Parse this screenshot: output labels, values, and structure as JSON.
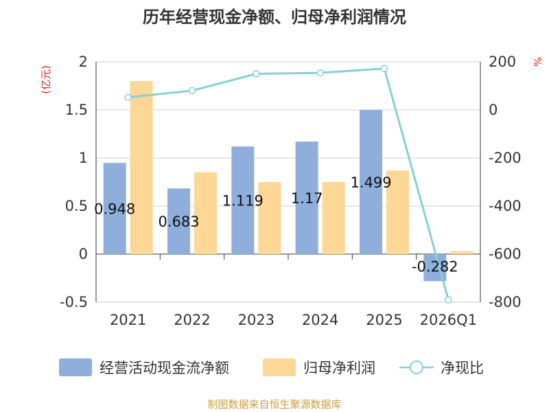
{
  "chart_data": {
    "type": "bar",
    "title": "历年经营现金净额、归母净利润情况",
    "categories": [
      "2021",
      "2022",
      "2023",
      "2024",
      "2025",
      "2026Q1"
    ],
    "y_left": {
      "unit": "(亿元)",
      "min": -0.5,
      "max": 2,
      "ticks": [
        "-0.5",
        "0",
        "0.5",
        "1",
        "1.5",
        "2"
      ]
    },
    "y_right": {
      "unit": "%",
      "min": -800,
      "max": 200,
      "ticks": [
        "-800",
        "-600",
        "-400",
        "-200",
        "0",
        "200"
      ]
    },
    "series": [
      {
        "name": "经营活动现金流净额",
        "kind": "bar",
        "axis": "left",
        "color": "#8eaedb",
        "values": [
          0.948,
          0.683,
          1.119,
          1.17,
          1.499,
          -0.282
        ],
        "labels": [
          "0.948",
          "0.683",
          "1.119",
          "1.17",
          "1.499",
          "-0.282"
        ]
      },
      {
        "name": "归母净利润",
        "kind": "bar",
        "axis": "left",
        "color": "#fdd796",
        "values": [
          1.8,
          0.85,
          0.75,
          0.75,
          0.87,
          0.03
        ]
      },
      {
        "name": "净现比",
        "kind": "line",
        "axis": "right",
        "color": "#86d0d3",
        "values": [
          52,
          80,
          150,
          154,
          172,
          -790
        ]
      }
    ]
  },
  "legend": [
    "经营活动现金流净额",
    "归母净利润",
    "净现比"
  ],
  "source": "制图数据来自恒生聚源数据库"
}
